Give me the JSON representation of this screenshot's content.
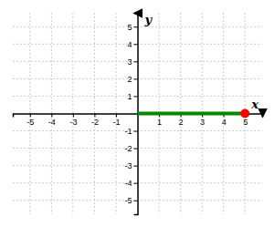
{
  "chart_data": {
    "type": "line",
    "xlabel": "x",
    "ylabel": "y",
    "xlim": [
      -5.8,
      5.8
    ],
    "ylim": [
      -5.8,
      5.8
    ],
    "xticks": [
      -5,
      -4,
      -3,
      -2,
      -1,
      1,
      2,
      3,
      4,
      5
    ],
    "yticks": [
      -5,
      -4,
      -3,
      -2,
      -1,
      1,
      2,
      3,
      4,
      5
    ],
    "grid": true,
    "series": [
      {
        "type": "line",
        "color": "#008800",
        "x": [
          0,
          5
        ],
        "values": [
          0,
          0
        ]
      },
      {
        "type": "scatter",
        "color": "#ff0000",
        "x": [
          5
        ],
        "values": [
          0
        ]
      }
    ]
  }
}
